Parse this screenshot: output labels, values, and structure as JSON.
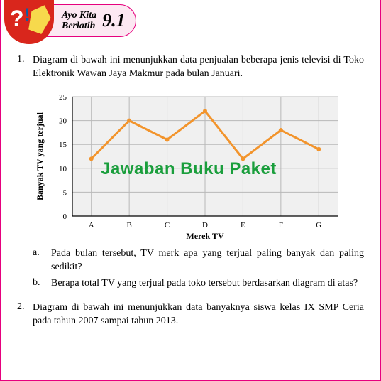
{
  "header": {
    "line1": "Ayo Kita",
    "line2": "Berlatih",
    "number": "9.1"
  },
  "q1": {
    "num": "1.",
    "text": "Diagram di bawah ini menunjukkan data penjualan beberapa jenis televisi di Toko Elektronik Wawan Jaya Makmur pada bulan Januari.",
    "sub_a_letter": "a.",
    "sub_a": "Pada bulan tersebut, TV merk apa yang terjual paling banyak dan paling sedikit?",
    "sub_b_letter": "b.",
    "sub_b": "Berapa total TV yang terjual pada toko tersebut berdasarkan diagram di atas?"
  },
  "q2": {
    "num": "2.",
    "text": "Diagram di bawah ini menunjukkan data banyaknya siswa kelas IX SMP Ceria pada tahun 2007 sampai tahun 2013."
  },
  "chart": {
    "type": "line",
    "categories": [
      "A",
      "B",
      "C",
      "D",
      "E",
      "F",
      "G"
    ],
    "values": [
      12,
      20,
      16,
      22,
      12,
      18,
      14
    ],
    "line_color": "#f2942c",
    "line_width": 3,
    "marker_color": "#f2942c",
    "marker_size": 3,
    "ylabel": "Banyak TV yang terjual",
    "xlabel": "Merek TV",
    "ylim": [
      0,
      25
    ],
    "ytick_step": 5,
    "label_fontsize": 12,
    "tick_fontsize": 11,
    "axis_fontweight": "bold",
    "plot_bg": "#f0f0f0",
    "grid_color": "#b8b8b8",
    "axis_color": "#000000",
    "page_bg": "#ffffff"
  },
  "watermark": "Jawaban Buku Paket"
}
